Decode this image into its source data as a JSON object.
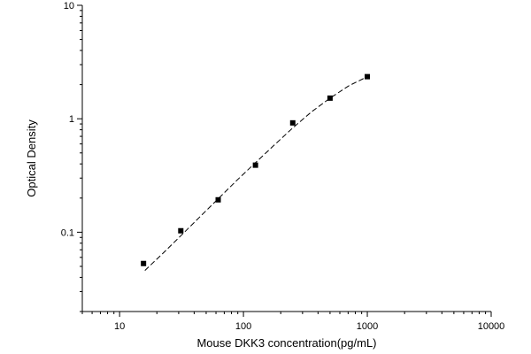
{
  "chart_data": {
    "type": "scatter",
    "title": "",
    "xlabel": "Mouse DKK3 concentration(pg/mL)",
    "ylabel": "Optical Density",
    "x_scale": "log",
    "y_scale": "log",
    "xlim": [
      5,
      10000
    ],
    "ylim": [
      0.02,
      10
    ],
    "x_ticks": [
      10,
      100,
      1000,
      10000
    ],
    "x_tick_labels": [
      "10",
      "100",
      "1000",
      "10000"
    ],
    "y_ticks": [
      0.1,
      1,
      10
    ],
    "y_tick_labels": [
      "0.1",
      "1",
      "10"
    ],
    "grid": false,
    "legend": "none",
    "marker_color": "#000000",
    "series": [
      {
        "points": [
          {
            "x": 15.6,
            "y": 0.053
          },
          {
            "x": 31.2,
            "y": 0.103
          },
          {
            "x": 62.5,
            "y": 0.193
          },
          {
            "x": 125,
            "y": 0.39
          },
          {
            "x": 250,
            "y": 0.92
          },
          {
            "x": 500,
            "y": 1.52
          },
          {
            "x": 1000,
            "y": 2.35
          }
        ]
      }
    ],
    "fit_curve": {
      "style": "dashed",
      "points": [
        {
          "x": 16,
          "y": 0.046
        },
        {
          "x": 22,
          "y": 0.064
        },
        {
          "x": 31.2,
          "y": 0.093
        },
        {
          "x": 44,
          "y": 0.135
        },
        {
          "x": 62.5,
          "y": 0.197
        },
        {
          "x": 88,
          "y": 0.285
        },
        {
          "x": 125,
          "y": 0.41
        },
        {
          "x": 177,
          "y": 0.585
        },
        {
          "x": 250,
          "y": 0.83
        },
        {
          "x": 354,
          "y": 1.15
        },
        {
          "x": 500,
          "y": 1.52
        },
        {
          "x": 707,
          "y": 1.95
        },
        {
          "x": 1000,
          "y": 2.35
        }
      ]
    }
  }
}
